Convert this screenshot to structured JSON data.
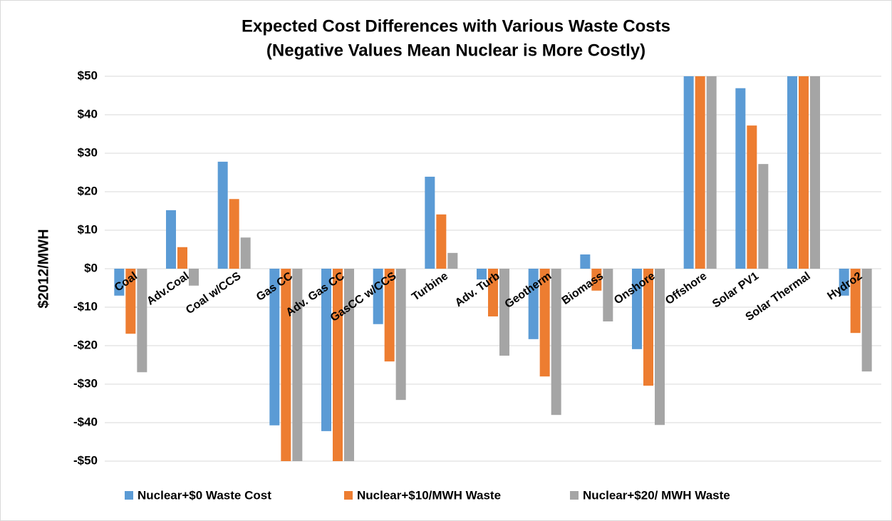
{
  "chart_data": {
    "type": "bar",
    "title": "Expected Cost Differences with Various Waste Costs",
    "subtitle": "(Negative Values Mean Nuclear is More Costly)",
    "y_label": "$2012/MWH",
    "categories": [
      "Coal",
      "Adv.Coal",
      "Coal w/CCS",
      "Gas CC",
      "Adv. Gas CC",
      "GasCC w/CCS",
      "Turbine",
      "Adv. Turb",
      "Geotherm",
      "Biomass",
      "Onshore",
      "Offshore",
      "Solar PV1",
      "Solar Thermal",
      "Hydro2"
    ],
    "series": [
      {
        "name": "Nuclear+$0 Waste Cost",
        "color": "#5b9bd5",
        "values": [
          -7,
          15.2,
          27.8,
          -40.7,
          -42.2,
          -14.4,
          23.9,
          -2.8,
          -18.3,
          3.7,
          -20.9,
          50,
          46.9,
          50,
          -7
        ]
      },
      {
        "name": "Nuclear+$10/MWH Waste",
        "color": "#ed7d31",
        "values": [
          -16.9,
          5.6,
          18.1,
          -50,
          -50,
          -24.1,
          14.1,
          -12.4,
          -28,
          -5.7,
          -30.4,
          50,
          37.2,
          50,
          -16.7
        ]
      },
      {
        "name": "Nuclear+$20/ MWH Waste",
        "color": "#a5a5a5",
        "values": [
          -26.9,
          -4.4,
          8.1,
          -50,
          -50,
          -34.1,
          4.1,
          -22.6,
          -38,
          -13.7,
          -40.6,
          50,
          27.2,
          50,
          -26.7
        ]
      }
    ],
    "ylim": [
      -50,
      50
    ],
    "yticks": [
      {
        "value": 50,
        "label": "$50"
      },
      {
        "value": 40,
        "label": "$40"
      },
      {
        "value": 30,
        "label": "$30"
      },
      {
        "value": 20,
        "label": "$20"
      },
      {
        "value": 10,
        "label": "$10"
      },
      {
        "value": 0,
        "label": "$0"
      },
      {
        "value": -10,
        "label": "-$10"
      },
      {
        "value": -20,
        "label": "-$20"
      },
      {
        "value": -30,
        "label": "-$30"
      },
      {
        "value": -40,
        "label": "-$40"
      },
      {
        "value": -50,
        "label": "-$50"
      }
    ],
    "grid": true,
    "legend": "bottom"
  }
}
